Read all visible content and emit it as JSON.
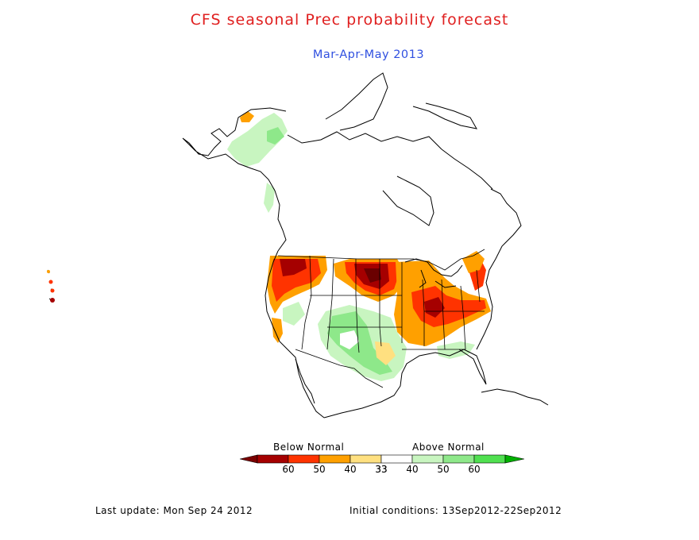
{
  "header": {
    "title": "CFS seasonal Prec probability forecast",
    "subtitle": "Mar-Apr-May 2013",
    "title_color": "#e02020",
    "subtitle_color": "#3050e0"
  },
  "legend": {
    "below_label": "Below Normal",
    "above_label": "Above Normal",
    "bins": [
      {
        "label": "60",
        "color": "#a50000"
      },
      {
        "label": "50",
        "color": "#ff3300"
      },
      {
        "label": "40",
        "color": "#ffa000"
      },
      {
        "label": "33",
        "color": "#ffe080"
      },
      {
        "label": "33",
        "color": "#ffffff"
      },
      {
        "label": "40",
        "color": "#c8f5c0"
      },
      {
        "label": "50",
        "color": "#8ee88a"
      },
      {
        "label": "60",
        "color": "#50e050"
      }
    ],
    "below_end_color": "#7a0000",
    "above_end_color": "#00b000"
  },
  "map": {
    "regions": "North America (Canada, United States, Mexico, Alaska, Hawaii)",
    "below_normal_areas": [
      {
        "name": "Pacific Northwest",
        "category": "50"
      },
      {
        "name": "North Dakota / Minnesota",
        "category": "60"
      },
      {
        "name": "Ohio Valley",
        "category": "50"
      },
      {
        "name": "Great Lakes / Northeast",
        "category": "40"
      },
      {
        "name": "Mid-Atlantic",
        "category": "50"
      }
    ],
    "above_normal_areas": [
      {
        "name": "Southern Rockies / Texas",
        "category": "50"
      },
      {
        "name": "Western Alaska",
        "category": "40"
      },
      {
        "name": "Southeast Coast",
        "category": "40"
      }
    ]
  },
  "footer": {
    "last_update": "Last update: Mon Sep 24 2012",
    "initial_conditions": "Initial conditions: 13Sep2012-22Sep2012"
  }
}
